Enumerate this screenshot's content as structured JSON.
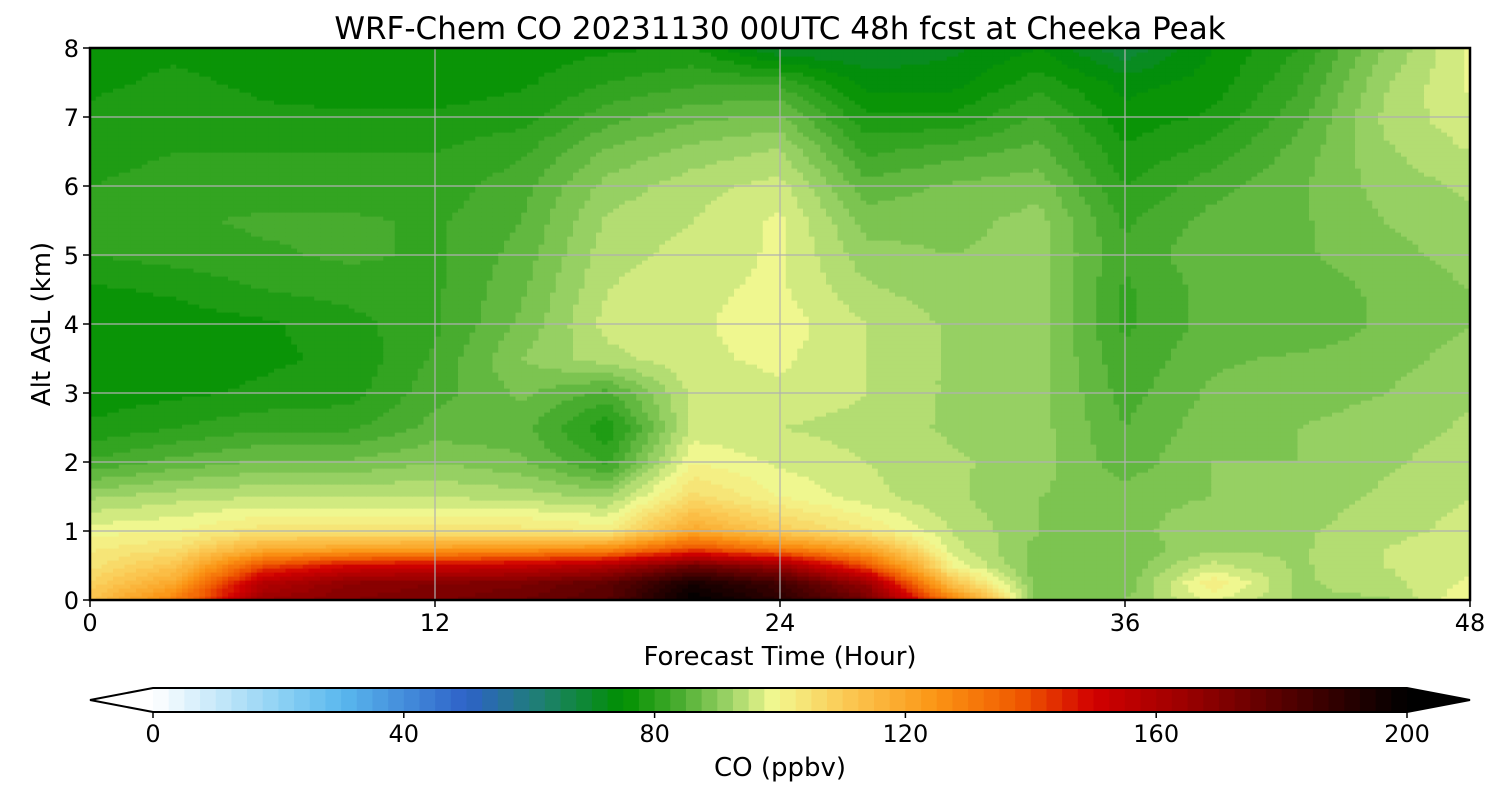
{
  "chart_data": {
    "type": "heatmap",
    "title": "WRF-Chem CO  20231130 00UTC 48h fcst at Cheeka Peak",
    "xlabel": "Forecast Time (Hour)",
    "ylabel": "Alt AGL (km)",
    "xlim": [
      0,
      48
    ],
    "ylim": [
      0,
      8
    ],
    "x_ticks": [
      0,
      12,
      24,
      36,
      48
    ],
    "y_ticks": [
      0,
      1,
      2,
      3,
      4,
      5,
      6,
      7,
      8
    ],
    "grid": true,
    "x": [
      0,
      3,
      6,
      9,
      12,
      15,
      18,
      21,
      24,
      27,
      30,
      33,
      36,
      39,
      42,
      45,
      48
    ],
    "y": [
      0,
      0.25,
      0.5,
      0.75,
      1,
      1.5,
      2,
      2.5,
      3,
      3.5,
      4,
      4.5,
      5,
      5.5,
      6,
      6.5,
      7,
      7.5,
      8
    ],
    "values": [
      [
        112,
        130,
        165,
        170,
        172,
        175,
        180,
        200,
        190,
        175,
        130,
        88,
        90,
        98,
        92,
        92,
        100
      ],
      [
        108,
        120,
        158,
        168,
        170,
        172,
        178,
        195,
        185,
        165,
        112,
        88,
        88,
        102,
        92,
        94,
        98
      ],
      [
        104,
        112,
        140,
        150,
        152,
        154,
        160,
        175,
        165,
        140,
        100,
        88,
        88,
        96,
        92,
        95,
        97
      ],
      [
        102,
        105,
        118,
        120,
        122,
        124,
        126,
        140,
        130,
        120,
        96,
        89,
        88,
        92,
        92,
        95,
        97
      ],
      [
        99,
        100,
        104,
        104,
        104,
        104,
        102,
        120,
        110,
        103,
        95,
        90,
        89,
        92,
        92,
        94,
        96
      ],
      [
        92,
        94,
        95,
        95,
        95,
        94,
        92,
        106,
        100,
        96,
        93,
        90,
        89,
        90,
        91,
        93,
        95
      ],
      [
        83,
        86,
        88,
        88,
        90,
        88,
        82,
        100,
        97,
        95,
        93,
        91,
        86,
        90,
        90,
        92,
        94
      ],
      [
        78,
        80,
        82,
        82,
        86,
        86,
        78,
        96,
        95,
        94,
        92,
        91,
        85,
        89,
        90,
        91,
        93
      ],
      [
        76,
        77,
        78,
        79,
        84,
        88,
        84,
        96,
        97,
        95,
        92,
        91,
        84,
        88,
        89,
        90,
        92
      ],
      [
        75,
        76,
        77,
        78,
        83,
        90,
        94,
        97,
        98,
        95,
        92,
        91,
        83,
        87,
        88,
        89,
        91
      ],
      [
        75,
        76,
        77,
        79,
        82,
        88,
        96,
        97,
        99,
        95,
        92,
        91,
        82,
        86,
        85,
        88,
        90
      ],
      [
        77,
        78,
        80,
        81,
        82,
        87,
        95,
        97,
        98,
        93,
        91,
        91,
        82,
        86,
        86,
        88,
        90
      ],
      [
        80,
        81,
        82,
        83,
        82,
        86,
        94,
        96,
        98,
        91,
        90,
        91,
        83,
        87,
        87,
        89,
        91
      ],
      [
        81,
        82,
        83,
        83,
        82,
        85,
        93,
        95,
        98,
        89,
        89,
        91,
        82,
        86,
        87,
        90,
        92
      ],
      [
        80,
        81,
        81,
        81,
        81,
        84,
        91,
        94,
        96,
        86,
        88,
        89,
        80,
        84,
        87,
        91,
        93
      ],
      [
        79,
        80,
        80,
        80,
        80,
        82,
        88,
        91,
        93,
        82,
        84,
        86,
        78,
        81,
        86,
        92,
        95
      ],
      [
        78,
        79,
        78,
        78,
        78,
        79,
        84,
        87,
        88,
        78,
        78,
        83,
        76,
        78,
        84,
        93,
        97
      ],
      [
        77,
        78,
        77,
        76,
        76,
        77,
        80,
        82,
        82,
        74,
        74,
        79,
        74,
        76,
        82,
        92,
        98
      ],
      [
        77,
        77,
        76,
        75,
        75,
        76,
        77,
        78,
        70,
        70,
        72,
        75,
        68,
        75,
        80,
        90,
        98
      ]
    ],
    "colorbar": {
      "label": "CO  (ppbv)",
      "min": 0,
      "max": 200,
      "ticks": [
        0,
        40,
        80,
        120,
        160,
        200
      ],
      "extend": "both",
      "colors": [
        {
          "v": 0,
          "c": "#ffffff"
        },
        {
          "v": 20,
          "c": "#8fd2f4"
        },
        {
          "v": 30,
          "c": "#5ab8ee"
        },
        {
          "v": 50,
          "c": "#2e62c8"
        },
        {
          "v": 62,
          "c": "#1e8070"
        },
        {
          "v": 75,
          "c": "#009000"
        },
        {
          "v": 84,
          "c": "#4aad30"
        },
        {
          "v": 92,
          "c": "#9ed468"
        },
        {
          "v": 99,
          "c": "#f2f890"
        },
        {
          "v": 110,
          "c": "#fbcb55"
        },
        {
          "v": 125,
          "c": "#fb9414"
        },
        {
          "v": 138,
          "c": "#f05a00"
        },
        {
          "v": 150,
          "c": "#d20000"
        },
        {
          "v": 165,
          "c": "#9a0000"
        },
        {
          "v": 185,
          "c": "#400000"
        },
        {
          "v": 200,
          "c": "#000000"
        }
      ]
    }
  }
}
